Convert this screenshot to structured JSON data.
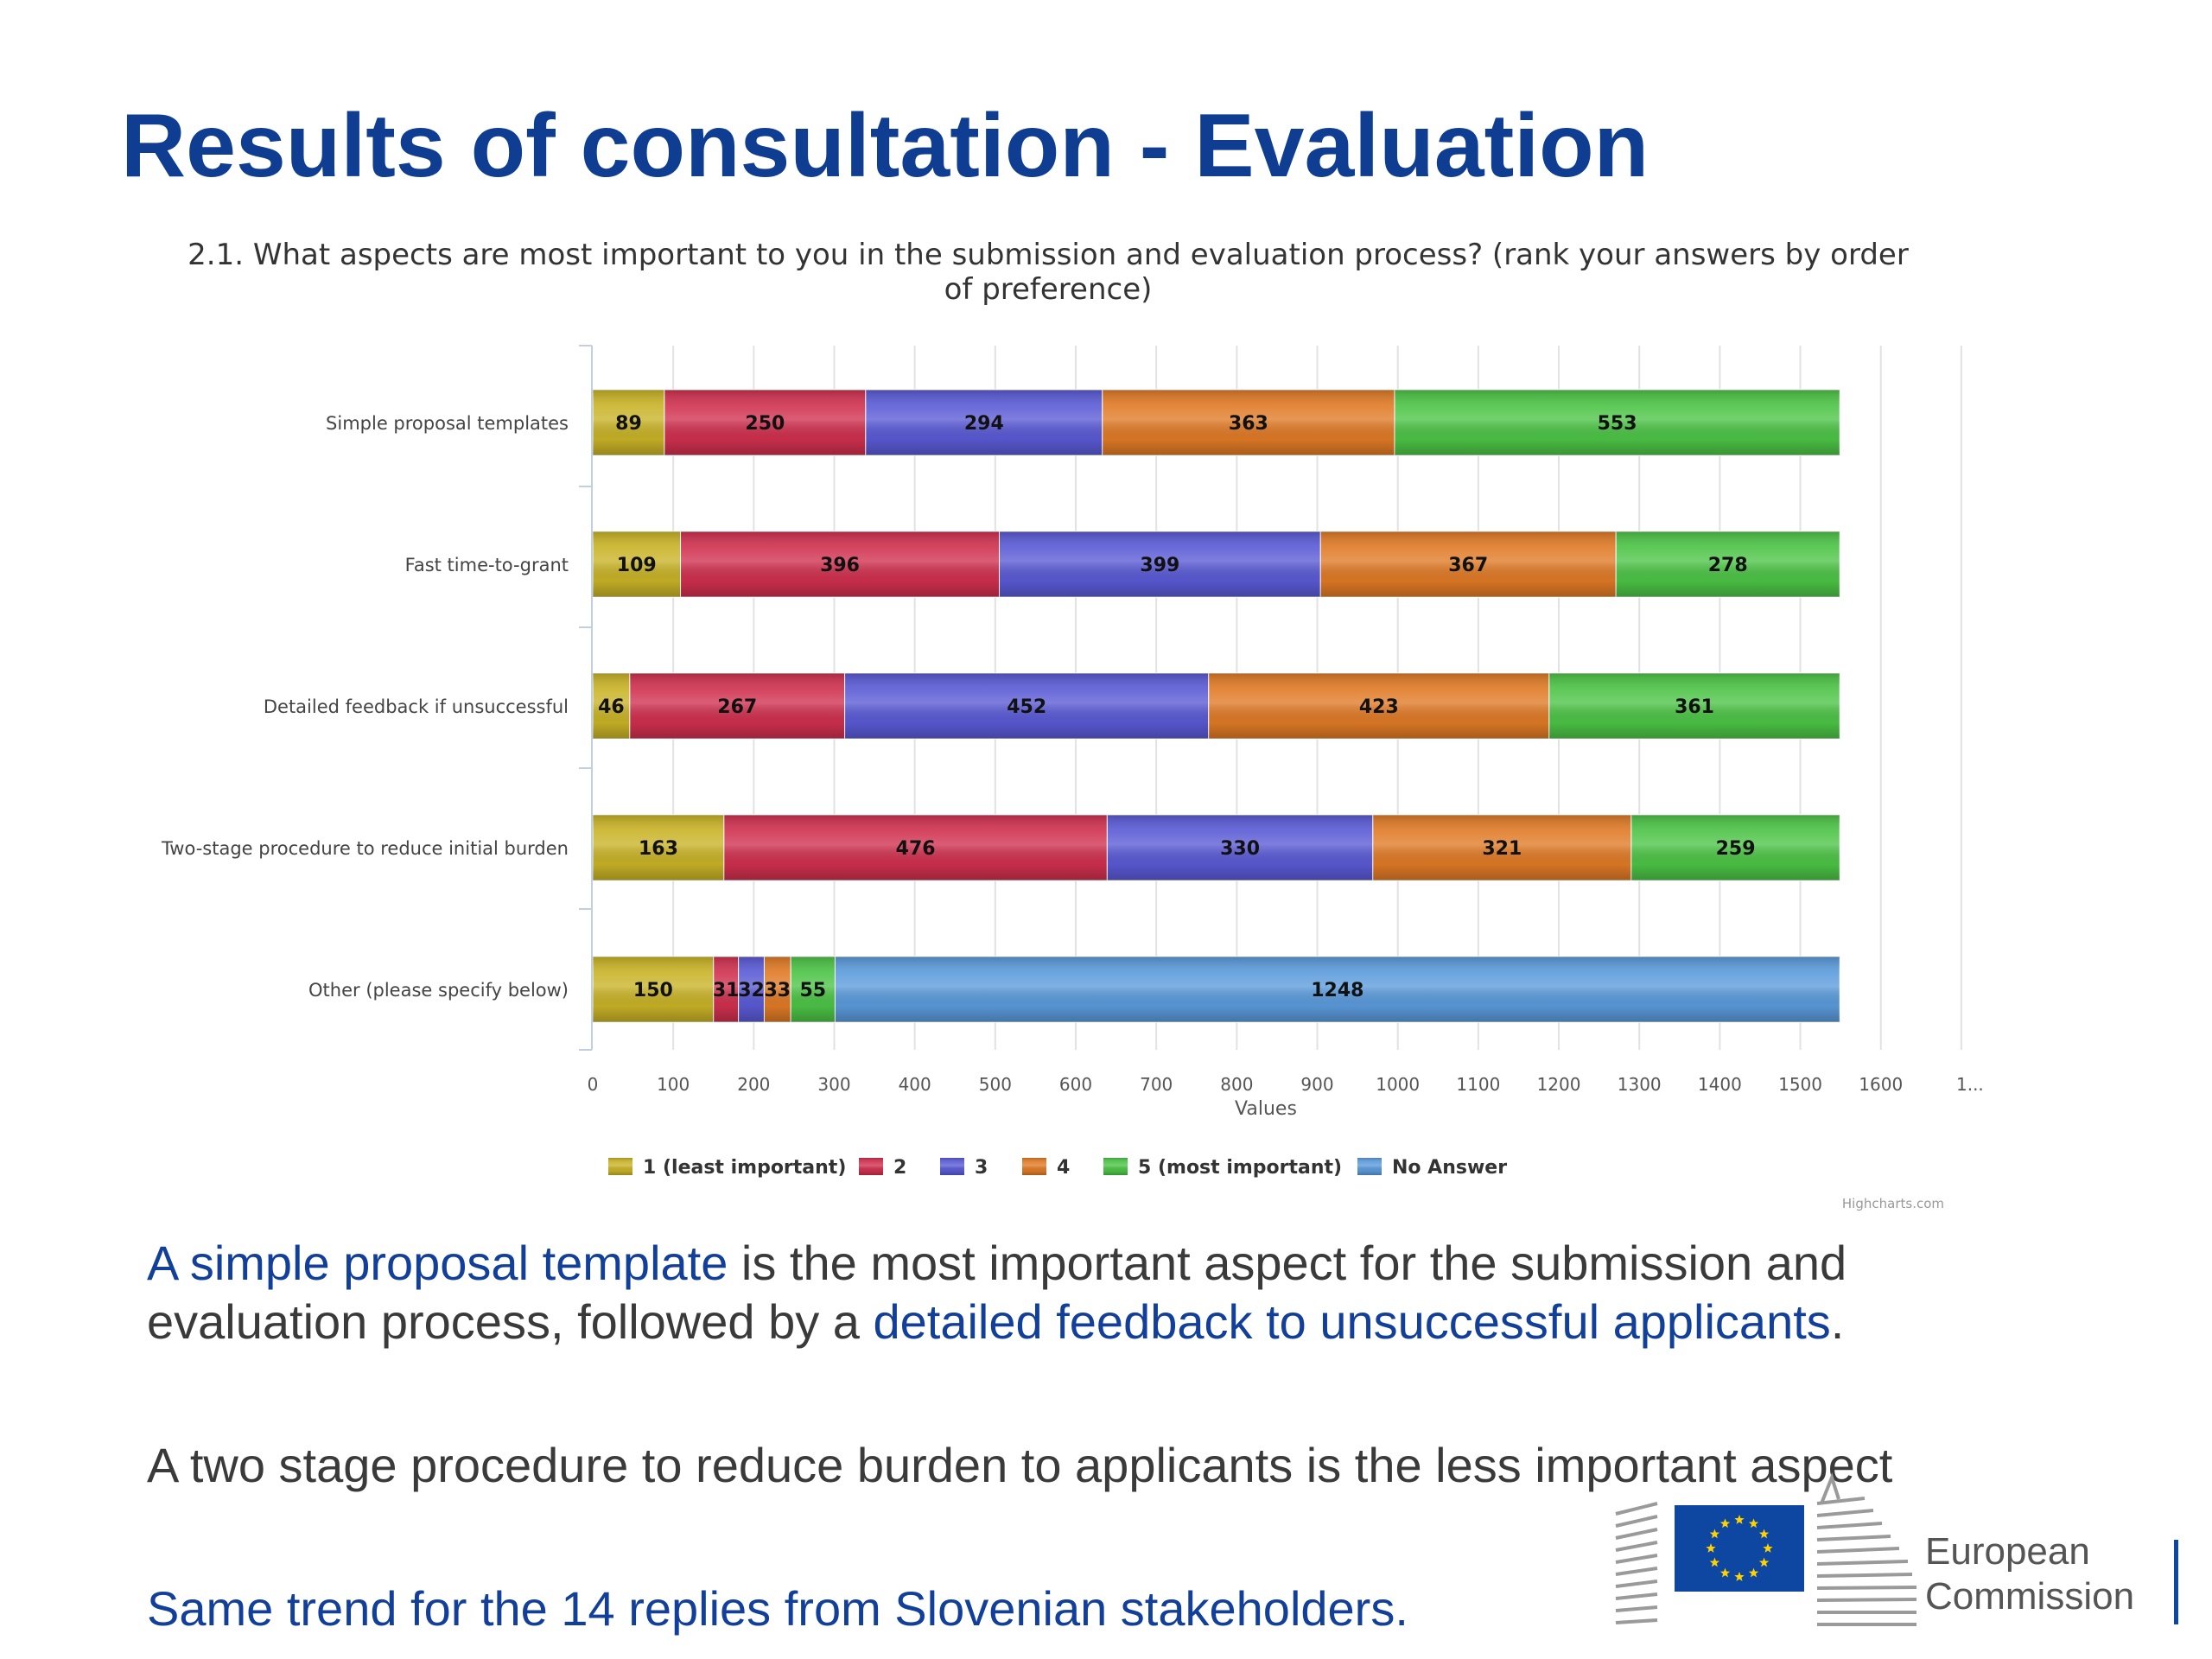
{
  "slide": {
    "title": "Results of consultation - Evaluation"
  },
  "chart_data": {
    "type": "bar",
    "orientation": "horizontal",
    "stacked": true,
    "title": "2.1. What aspects are most important to you in the submission and evaluation process? (rank your answers by order of preference)",
    "title_lines": [
      "2.1. What aspects are most important to you in the submission and evaluation process? (rank your answers by order",
      "of preference)"
    ],
    "xlabel": "Values",
    "ylabel": "",
    "xlim": [
      0,
      1700
    ],
    "x_ticks": [
      "0",
      "100",
      "200",
      "300",
      "400",
      "500",
      "600",
      "700",
      "800",
      "900",
      "1000",
      "1100",
      "1200",
      "1300",
      "1400",
      "1500",
      "1600",
      "1..."
    ],
    "grid": true,
    "legend_position": "bottom",
    "categories": [
      "Simple proposal templates",
      "Fast time-to-grant",
      "Detailed feedback if unsuccessful",
      "Two-stage procedure to reduce initial burden",
      "Other (please specify below)"
    ],
    "series": [
      {
        "name": "1 (least important)",
        "color": "#c9b326",
        "values": [
          89,
          109,
          46,
          163,
          150
        ]
      },
      {
        "name": "2",
        "color": "#d0304e",
        "values": [
          250,
          396,
          267,
          476,
          31
        ]
      },
      {
        "name": "3",
        "color": "#5a5ad6",
        "values": [
          294,
          399,
          452,
          330,
          32
        ]
      },
      {
        "name": "4",
        "color": "#e07a26",
        "values": [
          363,
          367,
          423,
          321,
          33
        ]
      },
      {
        "name": "5 (most important)",
        "color": "#4cc446",
        "values": [
          553,
          278,
          361,
          259,
          55
        ]
      },
      {
        "name": "No Answer",
        "color": "#5b9bdc",
        "values": [
          0,
          0,
          0,
          0,
          1248
        ]
      }
    ],
    "credit": "Highcharts.com"
  },
  "text": {
    "p1_highlight_a": "A simple proposal template",
    "p1_rest_a": " is the most important aspect for the submission and evaluation process, followed by a ",
    "p1_highlight_b": "detailed feedback to unsuccessful applicants",
    "p1_end": ".",
    "p2": "A two stage procedure to reduce burden to applicants is the less important aspect",
    "p3": "Same trend for the 14 replies from Slovenian stakeholders."
  },
  "logo": {
    "line1": "European",
    "line2": "Commission"
  },
  "colors": {
    "title": "#0e3d91",
    "highlight": "#123f99",
    "body_text": "#3a3a3a",
    "eu_blue": "#0e47a1",
    "eu_star": "#ffd200"
  }
}
